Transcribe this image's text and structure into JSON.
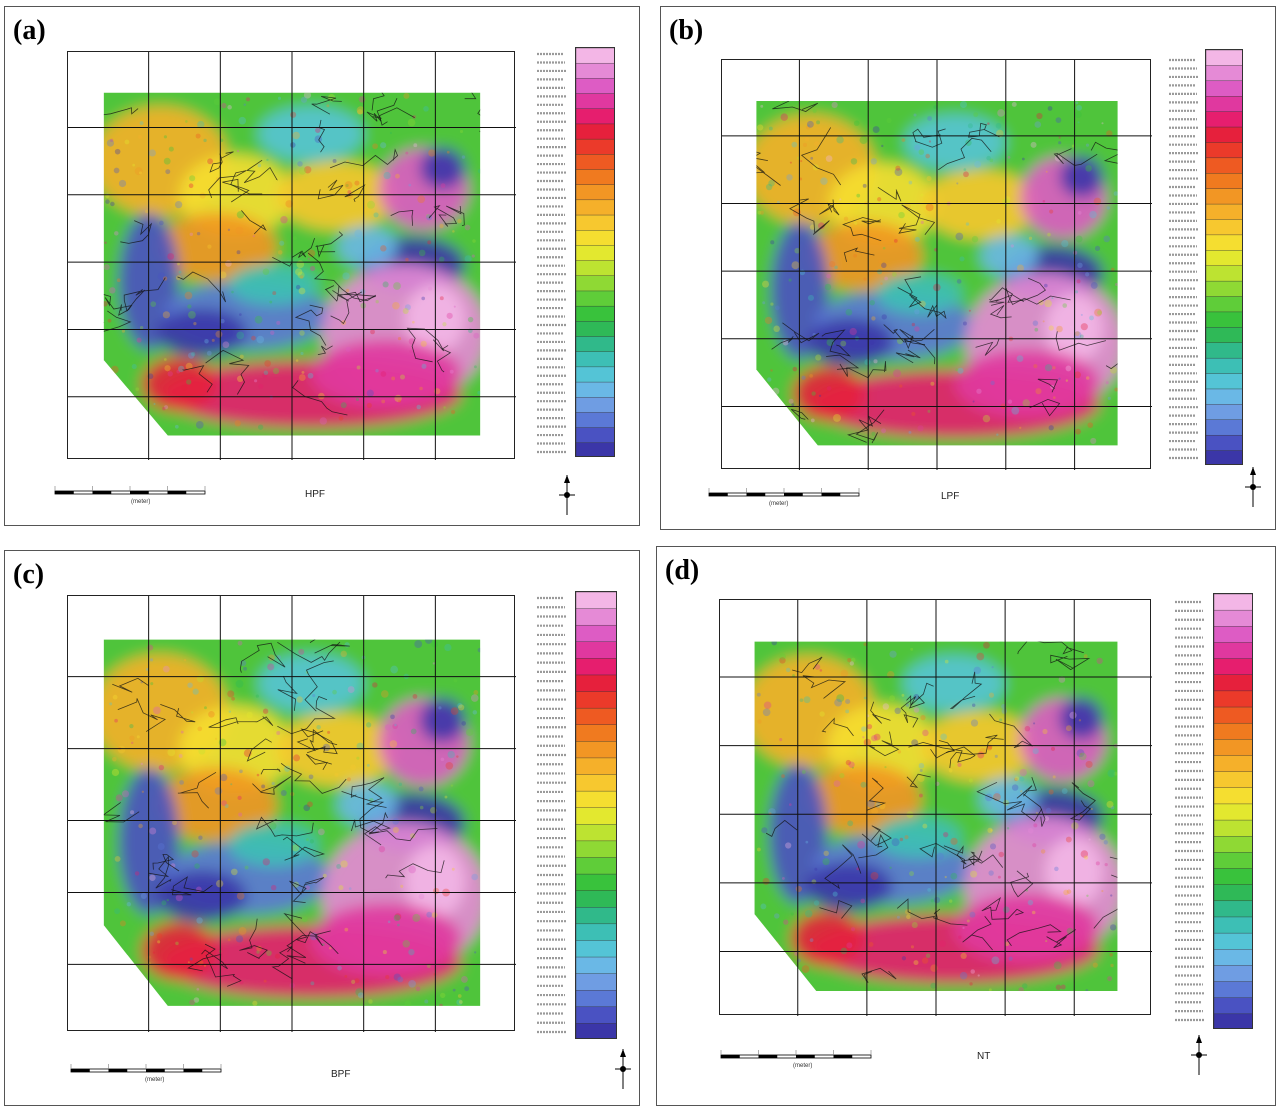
{
  "panels": [
    {
      "id": "a",
      "label": "(a)",
      "filter_label": "HPF",
      "scale_unit": "(meter)"
    },
    {
      "id": "b",
      "label": "(b)",
      "filter_label": "LPF",
      "scale_unit": "(meter)"
    },
    {
      "id": "c",
      "label": "(c)",
      "filter_label": "BPF",
      "scale_unit": "(meter)"
    },
    {
      "id": "d",
      "label": "(d)",
      "filter_label": "NT",
      "scale_unit": "(meter)"
    }
  ],
  "colorbar_colors": [
    "#f3b6e6",
    "#e58ad6",
    "#dd5cc4",
    "#e0389f",
    "#e61e6e",
    "#e6203c",
    "#eb3a2a",
    "#ee5a22",
    "#f07a1f",
    "#f29624",
    "#f5b02a",
    "#f7c82f",
    "#f5de30",
    "#e3e82f",
    "#bde331",
    "#8fd934",
    "#5fcd39",
    "#39c23c",
    "#2fb957",
    "#30b98a",
    "#3dbfb5",
    "#54c4d6",
    "#6ab8e6",
    "#6f9de3",
    "#5b79d6",
    "#4a52c2",
    "#3b36a8"
  ],
  "colors": {
    "panel_border": "#555555",
    "grid": "#111111"
  }
}
